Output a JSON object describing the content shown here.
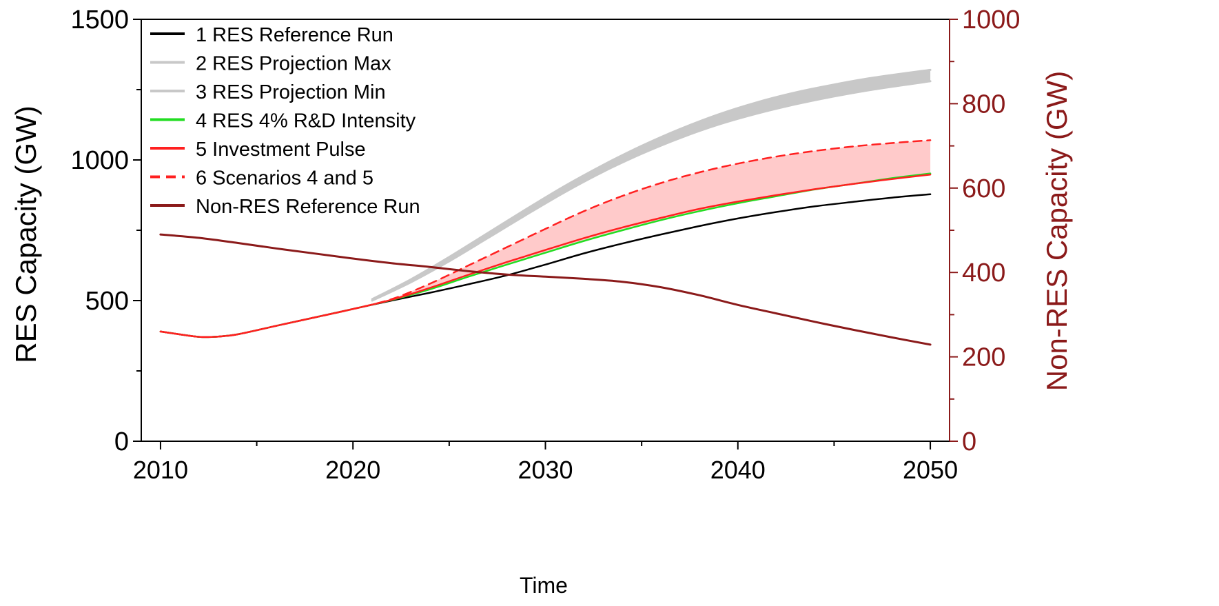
{
  "chart_data": {
    "type": "line",
    "xlabel": "Time",
    "ylabel": "RES Capacity (GW)",
    "y2label": "Non-RES Capacity (GW)",
    "xlim": [
      2009,
      2051
    ],
    "ylim": [
      0,
      1500
    ],
    "y2lim": [
      0,
      1000
    ],
    "xticks": [
      2010,
      2020,
      2030,
      2040,
      2050
    ],
    "yticks": [
      0,
      500,
      1000,
      1500
    ],
    "y2ticks": [
      0,
      200,
      400,
      600,
      800,
      1000
    ],
    "legend_position": "top-left",
    "colors": {
      "left_axis": "#000000",
      "right_axis": "#8b1a1a",
      "reference": "#000000",
      "projection": "#c8c8c8",
      "rd_intensity": "#22dd22",
      "investment_pulse": "#ff2020",
      "combined": "#ff2020",
      "non_res": "#8b1a1a",
      "pink_band": "#ffb8b8"
    },
    "series": [
      {
        "name": "1 RES Reference Run",
        "axis": "left",
        "style": "solid",
        "color": "#000000",
        "x": [
          2010,
          2011,
          2012,
          2013,
          2014,
          2016,
          2018,
          2020,
          2022,
          2024,
          2026,
          2028,
          2030,
          2032,
          2034,
          2036,
          2038,
          2040,
          2042,
          2044,
          2046,
          2048,
          2050
        ],
        "y": [
          390,
          380,
          371,
          372,
          380,
          410,
          440,
          470,
          500,
          528,
          558,
          590,
          628,
          668,
          703,
          735,
          765,
          792,
          815,
          835,
          851,
          866,
          878
        ]
      },
      {
        "name": "2 RES Projection Max",
        "axis": "left",
        "style": "solid",
        "color": "#c8c8c8",
        "x": [
          2021,
          2023,
          2025,
          2027,
          2029,
          2031,
          2033,
          2035,
          2037,
          2039,
          2041,
          2043,
          2045,
          2047,
          2050
        ],
        "y": [
          505,
          575,
          655,
          740,
          825,
          907,
          982,
          1050,
          1110,
          1162,
          1205,
          1240,
          1268,
          1292,
          1320
        ]
      },
      {
        "name": "3 RES Projection Min",
        "axis": "left",
        "style": "solid",
        "color": "#c8c8c8",
        "x": [
          2021,
          2023,
          2025,
          2027,
          2029,
          2031,
          2033,
          2035,
          2037,
          2039,
          2041,
          2043,
          2045,
          2047,
          2050
        ],
        "y": [
          500,
          565,
          640,
          722,
          805,
          885,
          958,
          1022,
          1078,
          1126,
          1165,
          1198,
          1226,
          1250,
          1280
        ]
      },
      {
        "name": "4 RES 4% R&D Intensity",
        "axis": "left",
        "style": "solid",
        "color": "#22dd22",
        "x": [
          2010,
          2011,
          2012,
          2013,
          2014,
          2016,
          2018,
          2020,
          2022,
          2024,
          2026,
          2028,
          2030,
          2032,
          2034,
          2036,
          2038,
          2040,
          2042,
          2044,
          2046,
          2048,
          2050
        ],
        "y": [
          390,
          380,
          371,
          372,
          380,
          410,
          440,
          470,
          502,
          540,
          585,
          628,
          670,
          712,
          750,
          786,
          818,
          846,
          871,
          895,
          915,
          935,
          952
        ]
      },
      {
        "name": "5 Investment Pulse",
        "axis": "left",
        "style": "solid",
        "color": "#ff2020",
        "x": [
          2010,
          2011,
          2012,
          2013,
          2014,
          2016,
          2018,
          2020,
          2022,
          2024,
          2026,
          2028,
          2030,
          2032,
          2034,
          2036,
          2038,
          2040,
          2042,
          2044,
          2046,
          2048,
          2050
        ],
        "y": [
          390,
          380,
          371,
          372,
          380,
          410,
          440,
          470,
          503,
          545,
          592,
          637,
          680,
          722,
          760,
          794,
          826,
          852,
          875,
          896,
          915,
          932,
          948
        ]
      },
      {
        "name": "6 Scenarios 4 and 5",
        "axis": "left",
        "style": "dashed",
        "color": "#ff2020",
        "x": [
          2010,
          2011,
          2012,
          2013,
          2014,
          2016,
          2018,
          2020,
          2022,
          2024,
          2026,
          2028,
          2030,
          2032,
          2034,
          2036,
          2038,
          2040,
          2042,
          2044,
          2046,
          2048,
          2050
        ],
        "y": [
          390,
          380,
          371,
          372,
          380,
          410,
          440,
          470,
          505,
          560,
          625,
          690,
          755,
          818,
          872,
          918,
          956,
          987,
          1012,
          1032,
          1048,
          1060,
          1070
        ]
      },
      {
        "name": "Non-RES Reference Run",
        "axis": "right",
        "style": "solid",
        "color": "#8b1a1a",
        "x": [
          2010,
          2012,
          2014,
          2016,
          2018,
          2020,
          2022,
          2024,
          2026,
          2028,
          2030,
          2032,
          2034,
          2036,
          2038,
          2040,
          2042,
          2044,
          2046,
          2048,
          2050
        ],
        "y": [
          490,
          482,
          470,
          457,
          445,
          433,
          422,
          413,
          403,
          395,
          390,
          385,
          378,
          365,
          346,
          323,
          303,
          283,
          264,
          246,
          229
        ]
      }
    ]
  }
}
